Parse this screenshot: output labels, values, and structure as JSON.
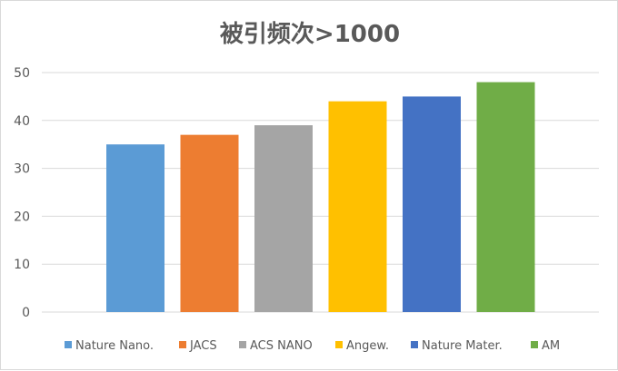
{
  "chart_data": {
    "type": "bar",
    "title": "被引频次>1000",
    "xlabel": "",
    "ylabel": "",
    "ylim": [
      0,
      50
    ],
    "yticks": [
      0,
      10,
      20,
      30,
      40,
      50
    ],
    "grid": true,
    "legend_position": "bottom",
    "series": [
      {
        "name": "Nature Nano.",
        "value": 35,
        "color": "#5B9BD5"
      },
      {
        "name": "JACS",
        "value": 37,
        "color": "#ED7D31"
      },
      {
        "name": "ACS NANO",
        "value": 39,
        "color": "#A5A5A5"
      },
      {
        "name": "Angew.",
        "value": 44,
        "color": "#FFC000"
      },
      {
        "name": "Nature Mater.",
        "value": 45,
        "color": "#4472C4"
      },
      {
        "name": "AM",
        "value": 48,
        "color": "#70AD47"
      }
    ]
  }
}
